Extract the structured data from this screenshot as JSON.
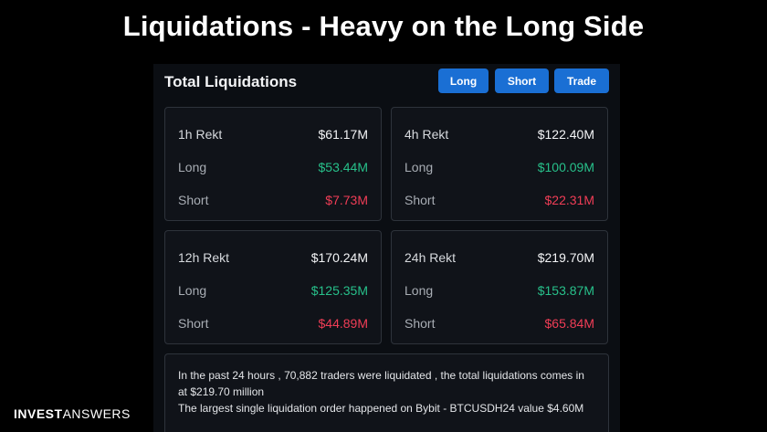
{
  "slide_title": "Liquidations - Heavy on the Long Side",
  "panel": {
    "title": "Total Liquidations",
    "tabs": [
      {
        "label": "Long"
      },
      {
        "label": "Short"
      },
      {
        "label": "Trade"
      }
    ]
  },
  "cards": [
    {
      "label": "1h Rekt",
      "total": "$61.17M",
      "long_label": "Long",
      "long_value": "$53.44M",
      "short_label": "Short",
      "short_value": "$7.73M"
    },
    {
      "label": "4h Rekt",
      "total": "$122.40M",
      "long_label": "Long",
      "long_value": "$100.09M",
      "short_label": "Short",
      "short_value": "$22.31M"
    },
    {
      "label": "12h Rekt",
      "total": "$170.24M",
      "long_label": "Long",
      "long_value": "$125.35M",
      "short_label": "Short",
      "short_value": "$44.89M"
    },
    {
      "label": "24h Rekt",
      "total": "$219.70M",
      "long_label": "Long",
      "long_value": "$153.87M",
      "short_label": "Short",
      "short_value": "$65.84M"
    }
  ],
  "summary": {
    "line1": "In the past 24 hours , 70,882 traders were liquidated , the total liquidations comes in at $219.70 million",
    "line2": "The largest single liquidation order happened on Bybit - BTCUSDH24 value $4.60M"
  },
  "brand": {
    "part1": "INVEST",
    "part2": "ANSWERS"
  },
  "colors": {
    "accent": "#1a6fd4",
    "positive": "#27c08a",
    "negative": "#f03d56"
  }
}
